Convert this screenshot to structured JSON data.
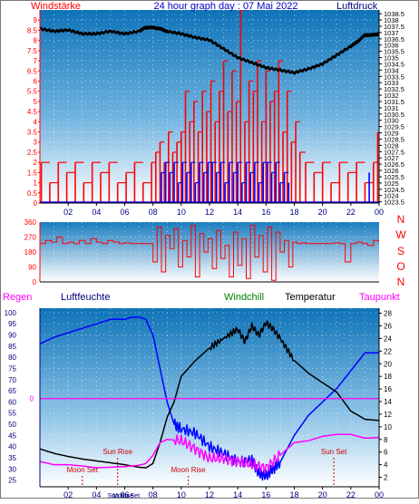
{
  "colors": {
    "red": "#ff0000",
    "blue": "#0000ff",
    "black": "#000000",
    "magenta": "#ff00ff",
    "green": "#008000",
    "navy": "#000080",
    "dark_red": "#cc0000"
  },
  "chart_data": [
    {
      "type": "bar",
      "title": "24 hour graph day : 07 Mai 2022",
      "left_axis_label": "Windstärke",
      "right_axis_label": "Luftdruck",
      "ylim": [
        0,
        9.5
      ],
      "y_ticks": [
        "0",
        "0.5",
        "1",
        "1.5",
        "2",
        "2.5",
        "3",
        "3.5",
        "4",
        "4.5",
        "5",
        "5.5",
        "6",
        "6.5",
        "7",
        "7.5",
        "8",
        "8.5",
        "9"
      ],
      "y2lim": [
        1023.4,
        1038.8
      ],
      "y2_ticks": [
        "1023.5",
        "1024",
        "1024.5",
        "1025",
        "1025.5",
        "1026",
        "1026.5",
        "1027",
        "1027.5",
        "1028",
        "1028.5",
        "1029",
        "1029.5",
        "1030",
        "1030.5",
        "1031",
        "1031.5",
        "1032",
        "1032.5",
        "1033",
        "1033.5",
        "1034",
        "1034.5",
        "1035",
        "1035.5",
        "1036",
        "1036.5",
        "1037",
        "1037.5",
        "1038",
        "1038.5"
      ],
      "x_ticks": [
        "02",
        "04",
        "06",
        "08",
        "10",
        "12",
        "14",
        "16",
        "18",
        "20",
        "22",
        "00"
      ],
      "series": [
        {
          "color": "red",
          "x": [
            0.1,
            0.7,
            1.3,
            1.9,
            2.5,
            3.1,
            3.7,
            4.3,
            4.9,
            5.5,
            6.1,
            6.7,
            7.3,
            7.9,
            8.2,
            8.5,
            8.8,
            9.1,
            9.4,
            9.7,
            10.0,
            10.3,
            10.6,
            10.9,
            11.2,
            11.5,
            11.8,
            12.1,
            12.4,
            12.7,
            13.0,
            13.3,
            13.6,
            13.9,
            14.2,
            14.5,
            14.8,
            15.1,
            15.4,
            15.7,
            16.0,
            16.3,
            16.6,
            16.9,
            17.2,
            17.5,
            17.8,
            18.1,
            18.4,
            18.8,
            19.4,
            20.0,
            20.6,
            21.2,
            21.8,
            22.4,
            23.0,
            23.6,
            23.9
          ],
          "values": [
            2,
            1,
            2,
            1.5,
            2,
            1,
            2,
            1.5,
            2,
            1,
            1.5,
            2,
            1,
            2,
            2.5,
            3,
            2,
            3.5,
            2.5,
            3,
            3.5,
            5.5,
            4,
            5,
            3.5,
            5.5,
            4.5,
            6,
            4,
            5.5,
            7,
            4.5,
            6.5,
            5,
            9.5,
            4,
            6,
            5.5,
            7,
            4,
            6.5,
            5,
            5.5,
            7,
            3.5,
            5.5,
            3,
            4,
            2.5,
            2,
            1.5,
            2,
            1,
            2,
            1.5,
            2,
            1,
            2,
            3.5
          ]
        },
        {
          "color": "blue",
          "x": [
            8.6,
            8.9,
            9.2,
            9.5,
            9.8,
            10.1,
            10.4,
            10.7,
            11.0,
            11.3,
            11.6,
            11.9,
            12.2,
            12.5,
            12.8,
            13.1,
            13.4,
            13.7,
            14.0,
            14.3,
            14.6,
            14.9,
            15.2,
            15.5,
            15.8,
            16.1,
            16.4,
            16.7,
            17.0,
            17.3,
            17.6,
            23.3
          ],
          "values": [
            1.5,
            2,
            1.5,
            2,
            1,
            2,
            1.5,
            2,
            1,
            2,
            1.5,
            2,
            2,
            1.5,
            2,
            1,
            2,
            1.5,
            2,
            1,
            2,
            1.5,
            2,
            1,
            2,
            2,
            1.5,
            2,
            1,
            1.5,
            1,
            1.5
          ]
        },
        {
          "name": "Luftdruck",
          "color": "black",
          "axis": "right",
          "type": "line",
          "x": [
            0,
            1,
            2,
            3,
            4,
            5,
            6,
            7,
            7.5,
            8,
            8.5,
            9,
            10,
            11,
            12,
            13,
            14,
            15,
            16,
            17,
            18,
            19,
            20,
            21,
            22,
            22.5,
            23,
            23.5,
            24
          ],
          "values": [
            1037.3,
            1037.1,
            1037.2,
            1036.9,
            1036.9,
            1037.1,
            1036.9,
            1037.1,
            1037.4,
            1037.4,
            1037.3,
            1037.1,
            1036.9,
            1036.6,
            1036.4,
            1035.7,
            1035.0,
            1034.6,
            1034.2,
            1034.0,
            1033.8,
            1034.1,
            1034.5,
            1035.2,
            1035.9,
            1036.3,
            1036.8,
            1036.8,
            1036.9
          ]
        }
      ]
    },
    {
      "type": "line",
      "left_axis_label": "",
      "right_axis_label": "N W S O N",
      "right_letters": [
        "N",
        "W",
        "S",
        "O",
        "N"
      ],
      "ylim": [
        0,
        360
      ],
      "y_ticks": [
        "0",
        "90",
        "180",
        "270",
        "360"
      ],
      "series": [
        {
          "color": "red",
          "x": [
            0,
            0.4,
            0.8,
            1.2,
            1.6,
            2.0,
            2.4,
            2.8,
            3.2,
            3.6,
            4.0,
            4.4,
            4.8,
            5.2,
            5.6,
            6.0,
            6.4,
            6.8,
            7.2,
            7.6,
            8.0,
            8.3,
            8.6,
            8.9,
            9.2,
            9.5,
            9.8,
            10.1,
            10.4,
            10.7,
            11.0,
            11.3,
            11.6,
            11.9,
            12.2,
            12.5,
            12.8,
            13.1,
            13.4,
            13.7,
            14.0,
            14.3,
            14.6,
            14.9,
            15.2,
            15.5,
            15.8,
            16.1,
            16.4,
            16.7,
            17.0,
            17.3,
            17.6,
            17.9,
            18.2,
            18.5,
            18.8,
            19.2,
            19.6,
            20.0,
            20.4,
            20.8,
            21.2,
            21.6,
            22.0,
            22.4,
            22.8,
            23.2,
            23.6,
            24.0
          ],
          "values": [
            230,
            250,
            240,
            270,
            230,
            240,
            230,
            250,
            230,
            260,
            240,
            230,
            250,
            240,
            230,
            235,
            230,
            230,
            230,
            230,
            120,
            330,
            60,
            280,
            200,
            320,
            90,
            250,
            150,
            340,
            30,
            290,
            180,
            260,
            80,
            310,
            140,
            220,
            30,
            300,
            100,
            260,
            20,
            340,
            150,
            280,
            60,
            330,
            10,
            300,
            180,
            250,
            90,
            240,
            230,
            235,
            230,
            230,
            230,
            230,
            230,
            235,
            230,
            120,
            230,
            240,
            230,
            220,
            250,
            240
          ]
        }
      ]
    },
    {
      "type": "line",
      "left_label_1": "Regen",
      "left_label_2": "Luftfeuchte",
      "legend": [
        "Windchill",
        "Temperatur",
        "Taupunkt"
      ],
      "ylim": [
        22,
        102
      ],
      "y_ticks": [
        "25",
        "30",
        "35",
        "40",
        "45",
        "50",
        "55",
        "60",
        "65",
        "70",
        "75",
        "80",
        "85",
        "90",
        "95",
        "100"
      ],
      "rain_tick": "0",
      "y2lim": [
        0.5,
        28.8
      ],
      "y2_ticks": [
        "2",
        "4",
        "6",
        "8",
        "10",
        "12",
        "14",
        "16",
        "18",
        "20",
        "22",
        "24",
        "26",
        "28"
      ],
      "x_ticks": [
        "02",
        "04",
        "06",
        "08",
        "10",
        "12",
        "14",
        "16",
        "18",
        "20",
        "22",
        "00"
      ],
      "annotations": [
        {
          "text": "Moon Set",
          "x": 3.0
        },
        {
          "text": "Sun Rise",
          "x": 5.5
        },
        {
          "text": "Moon Rise",
          "x": 10.5
        },
        {
          "text": "Sun Set",
          "x": 20.8
        }
      ],
      "below_axis_labels": [
        "Sun Rise",
        "Moon Set"
      ],
      "series": [
        {
          "name": "Luftfeuchte",
          "color": "blue",
          "axis": "left",
          "x": [
            0,
            1,
            2,
            3,
            4,
            5,
            6,
            6.5,
            7,
            7.5,
            8,
            8.5,
            9,
            9.5,
            10,
            11,
            12,
            13,
            14,
            15,
            15.5,
            16,
            16.5,
            17,
            18,
            19,
            20,
            21,
            22,
            23,
            24
          ],
          "values": [
            86,
            89,
            91,
            93,
            95,
            97,
            97,
            98,
            98,
            97,
            90,
            75,
            60,
            50,
            48,
            46,
            40,
            37,
            33,
            34,
            28,
            27,
            30,
            33,
            45,
            54,
            60,
            66,
            74,
            82,
            82
          ]
        },
        {
          "name": "Temperatur",
          "color": "black",
          "axis": "right",
          "x": [
            0,
            1,
            2,
            3,
            4,
            5,
            6,
            7,
            7.5,
            8,
            8.5,
            9,
            9.5,
            10,
            11,
            12,
            13,
            14,
            14.5,
            15,
            15.5,
            16,
            16.5,
            17,
            18,
            19,
            20,
            21,
            22,
            23,
            24
          ],
          "values": [
            6.5,
            5.8,
            5.3,
            4.9,
            4.6,
            4.3,
            4.0,
            3.6,
            3.5,
            4.2,
            7.5,
            11.5,
            14,
            18,
            20.5,
            22.5,
            24,
            25.5,
            23.5,
            26,
            24.5,
            26.5,
            25.5,
            24,
            20.5,
            18.5,
            17,
            15.5,
            12.5,
            11.2,
            11
          ]
        },
        {
          "name": "Taupunkt",
          "color": "magenta",
          "axis": "right",
          "x": [
            0,
            1,
            2,
            3,
            4,
            5,
            6,
            7,
            7.5,
            8,
            8.5,
            9,
            10,
            11,
            12,
            13,
            14,
            15,
            16,
            17,
            18,
            19,
            20,
            21,
            22,
            23,
            24
          ],
          "values": [
            4.5,
            4.0,
            4.0,
            3.8,
            3.5,
            3.6,
            3.7,
            3.9,
            4.2,
            5.5,
            7.5,
            8.0,
            7.8,
            6.5,
            5.0,
            5.0,
            4.5,
            4.0,
            3.5,
            5.5,
            7.5,
            7.8,
            8.5,
            8.8,
            8.8,
            8.2,
            8.3
          ]
        },
        {
          "name": "Regen",
          "color": "magenta",
          "axis": "rain",
          "x": [
            0,
            24
          ],
          "values": [
            0,
            0
          ]
        }
      ]
    }
  ]
}
